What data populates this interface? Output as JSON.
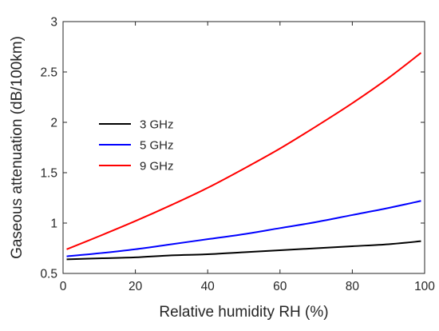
{
  "chart_data": {
    "type": "line",
    "title": "",
    "xlabel": "Relative humidity RH (%)",
    "ylabel": "Gaseous attenuation (dB/100km)",
    "xlim": [
      0,
      100
    ],
    "ylim": [
      0.5,
      3
    ],
    "xticks": [
      0,
      20,
      40,
      60,
      80,
      100
    ],
    "yticks": [
      0.5,
      1,
      1.5,
      2,
      2.5,
      3
    ],
    "xtick_labels": [
      "0",
      "20",
      "40",
      "60",
      "80",
      "100"
    ],
    "ytick_labels": [
      "0.5",
      "1",
      "1.5",
      "2",
      "2.5",
      "3"
    ],
    "grid": false,
    "legend_position": "upper-left",
    "x": [
      1,
      10,
      20,
      30,
      40,
      50,
      60,
      70,
      80,
      90,
      99
    ],
    "series": [
      {
        "name": "3 GHz",
        "color": "#000000",
        "values": [
          0.64,
          0.65,
          0.66,
          0.68,
          0.69,
          0.71,
          0.73,
          0.75,
          0.77,
          0.79,
          0.82
        ]
      },
      {
        "name": "5 GHz",
        "color": "#0000ff",
        "values": [
          0.67,
          0.7,
          0.74,
          0.79,
          0.84,
          0.89,
          0.95,
          1.01,
          1.08,
          1.15,
          1.22
        ]
      },
      {
        "name": "9 GHz",
        "color": "#ff0000",
        "values": [
          0.74,
          0.87,
          1.02,
          1.18,
          1.35,
          1.54,
          1.74,
          1.96,
          2.19,
          2.44,
          2.69
        ]
      }
    ]
  }
}
